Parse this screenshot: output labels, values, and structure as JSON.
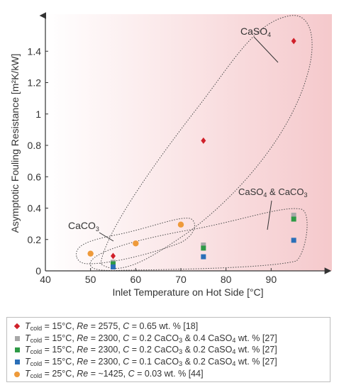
{
  "chart_data": {
    "type": "scatter",
    "xlabel": "Inlet Temperature on Hot Side [°C]",
    "ylabel": "Asymptotic Fouling Resistance [m²K/kW]",
    "xlim": [
      40,
      100
    ],
    "ylim": [
      0,
      1.6
    ],
    "x_ticks": [
      "40",
      "50",
      "60",
      "70",
      "80",
      "90"
    ],
    "y_ticks": [
      "0",
      "0.2",
      "0.4",
      "0.6",
      "0.8",
      "1",
      "1.2",
      "1.4"
    ],
    "grid": false,
    "legend_position": "below",
    "background": {
      "from": "#ffffff",
      "to": "#f5c9cc"
    },
    "annotations": [
      {
        "base": "CaSO",
        "sub": "4",
        "tail": ""
      },
      {
        "base": "CaSO",
        "sub": "4",
        "tail": " & CaCO",
        "sub2": "3"
      },
      {
        "base": "CaCO",
        "sub": "3",
        "tail": ""
      }
    ],
    "series": [
      {
        "marker": "diamond",
        "color": "#d0202a",
        "points": [
          [
            55,
            0.095
          ],
          [
            75,
            0.83
          ],
          [
            95,
            1.465
          ]
        ],
        "legend": {
          "t": "T",
          "tsub": "cold",
          "a": " = 15°C, ",
          "re": "Re",
          "b": " = 2575, ",
          "c": "C",
          "d": " = 0.65 wt. % [18]"
        }
      },
      {
        "marker": "square",
        "color": "#a8a8a8",
        "points": [
          [
            55,
            0.055
          ],
          [
            75,
            0.165
          ],
          [
            95,
            0.355
          ]
        ],
        "legend": {
          "t": "T",
          "tsub": "cold",
          "a": " = 15°C, ",
          "re": "Re",
          "b": " = 2300, ",
          "c": "C",
          "d": " = 0.2 CaCO",
          "s1": "3",
          "e": " & 0.4 CaSO",
          "s2": "4",
          "f": " wt. % [27]"
        }
      },
      {
        "marker": "square",
        "color": "#2e9a46",
        "points": [
          [
            55,
            0.045
          ],
          [
            75,
            0.145
          ],
          [
            95,
            0.33
          ]
        ],
        "legend": {
          "t": "T",
          "tsub": "cold",
          "a": " = 15°C, ",
          "re": "Re",
          "b": " = 2300, ",
          "c": "C",
          "d": " = 0.2 CaCO",
          "s1": "3",
          "e": " & 0.2 CaSO",
          "s2": "4",
          "f": " wt. % [27]"
        }
      },
      {
        "marker": "square",
        "color": "#2a6fb8",
        "points": [
          [
            55,
            0.025
          ],
          [
            75,
            0.09
          ],
          [
            95,
            0.195
          ]
        ],
        "legend": {
          "t": "T",
          "tsub": "cold",
          "a": " = 15°C, ",
          "re": "Re",
          "b": " = 2300, ",
          "c": "C",
          "d": " = 0.1 CaCO",
          "s1": "3",
          "e": " & 0.2 CaSO",
          "s2": "4",
          "f": " wt. % [27]"
        }
      },
      {
        "marker": "circle",
        "color": "#ee9a3a",
        "points": [
          [
            50,
            0.11
          ],
          [
            60,
            0.175
          ],
          [
            70,
            0.295
          ]
        ],
        "legend": {
          "t": "T",
          "tsub": "cold",
          "a": " = 25°C, ",
          "re": "Re",
          "b": " = ~1425, ",
          "c": "C",
          "d": " = 0.03 wt. % [44]"
        }
      }
    ]
  }
}
